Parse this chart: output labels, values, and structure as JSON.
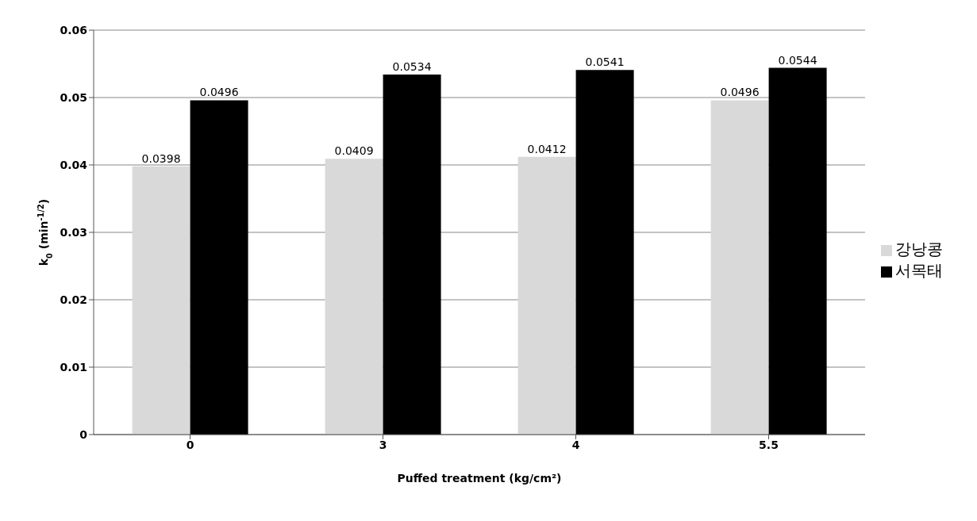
{
  "chart_data": {
    "type": "bar",
    "xlabel": "Puffed treatment (kg/cm²)",
    "ylabel": "k$_{0}$ (min$^{-1/2}$)",
    "categories": [
      "0",
      "3",
      "4",
      "5.5"
    ],
    "series": [
      {
        "name": "강낭콩",
        "color": "#d9d9d9",
        "values": [
          0.0398,
          0.0409,
          0.0412,
          0.0496
        ]
      },
      {
        "name": "서목태",
        "color": "#000000",
        "values": [
          0.0496,
          0.0534,
          0.0541,
          0.0544
        ]
      }
    ],
    "ylim": [
      0,
      0.06
    ],
    "yticks": [
      0,
      0.01,
      0.02,
      0.03,
      0.04,
      0.05,
      0.06
    ],
    "grid": "y",
    "legend": "right",
    "data_labels": true
  }
}
